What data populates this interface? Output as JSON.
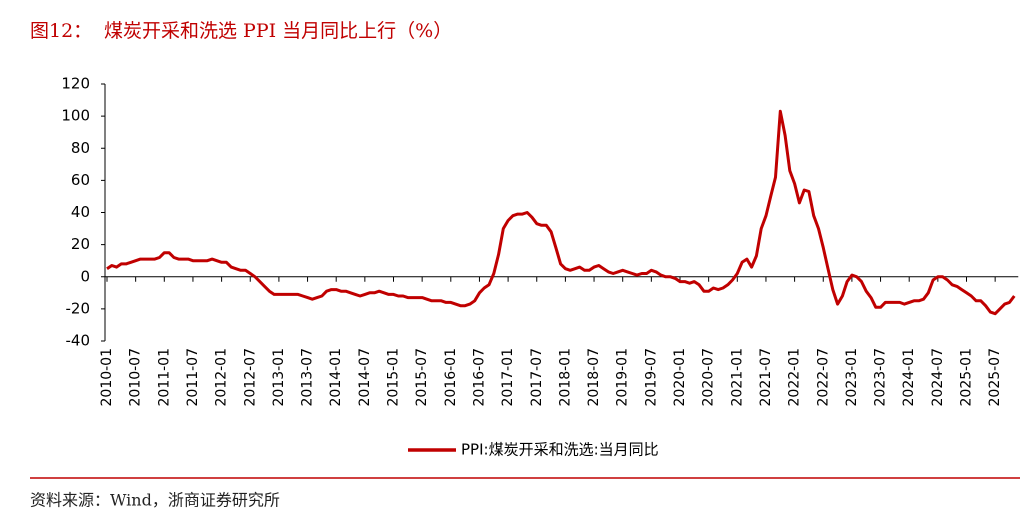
{
  "figure_label": "图12：",
  "chart_data": {
    "type": "line",
    "title": "煤炭开采和洗选 PPI 当月同比上行（%）",
    "categories": [
      "2010-01",
      null,
      null,
      null,
      null,
      null,
      "2010-07",
      null,
      null,
      null,
      null,
      null,
      "2011-01",
      null,
      null,
      null,
      null,
      null,
      "2011-07",
      null,
      null,
      null,
      null,
      null,
      "2012-01",
      null,
      null,
      null,
      null,
      null,
      "2012-07",
      null,
      null,
      null,
      null,
      null,
      "2013-01",
      null,
      null,
      null,
      null,
      null,
      "2013-07",
      null,
      null,
      null,
      null,
      null,
      "2014-01",
      null,
      null,
      null,
      null,
      null,
      "2014-07",
      null,
      null,
      null,
      null,
      null,
      "2015-01",
      null,
      null,
      null,
      null,
      null,
      "2015-07",
      null,
      null,
      null,
      null,
      null,
      "2016-01",
      null,
      null,
      null,
      null,
      null,
      "2016-07",
      null,
      null,
      null,
      null,
      null,
      "2017-01",
      null,
      null,
      null,
      null,
      null,
      "2017-07",
      null,
      null,
      null,
      null,
      null,
      "2018-01",
      null,
      null,
      null,
      null,
      null,
      "2018-07",
      null,
      null,
      null,
      null,
      null,
      "2019-01",
      null,
      null,
      null,
      null,
      null,
      "2019-07",
      null,
      null,
      null,
      null,
      null,
      "2020-01",
      null,
      null,
      null,
      null,
      null,
      "2020-07",
      null,
      null,
      null,
      null,
      null,
      "2021-01",
      null,
      null,
      null,
      null,
      null,
      "2021-07",
      null,
      null,
      null,
      null,
      null,
      "2022-01",
      null,
      null,
      null,
      null,
      null,
      "2022-07",
      null,
      null,
      null,
      null,
      null,
      "2023-01",
      null,
      null,
      null,
      null,
      null,
      "2023-07",
      null,
      null,
      null,
      null,
      null,
      "2024-01",
      null,
      null,
      null,
      null,
      null,
      "2024-07",
      null,
      null,
      null,
      null,
      null,
      "2025-01",
      null,
      null,
      null,
      null,
      null,
      "2025-07",
      null,
      null,
      null,
      null
    ],
    "series": [
      {
        "name": "PPI:煤炭开采和洗选:当月同比",
        "color": "#c00000",
        "values": [
          5,
          7,
          6,
          8,
          8,
          9,
          10,
          11,
          11,
          11,
          11,
          12,
          15,
          15,
          12,
          11,
          11,
          11,
          10,
          10,
          10,
          10,
          11,
          10,
          9,
          9,
          6,
          5,
          4,
          4,
          2,
          0,
          -3,
          -6,
          -9,
          -11,
          -11,
          -11,
          -11,
          -11,
          -11,
          -12,
          -13,
          -14,
          -13,
          -12,
          -9,
          -8,
          -8,
          -9,
          -9,
          -10,
          -11,
          -12,
          -11,
          -10,
          -10,
          -9,
          -10,
          -11,
          -11,
          -12,
          -12,
          -13,
          -13,
          -13,
          -13,
          -14,
          -15,
          -15,
          -15,
          -16,
          -16,
          -17,
          -18,
          -18,
          -17,
          -15,
          -10,
          -7,
          -5,
          2,
          14,
          30,
          35,
          38,
          39,
          39,
          40,
          37,
          33,
          32,
          32,
          28,
          18,
          8,
          5,
          4,
          5,
          6,
          4,
          4,
          6,
          7,
          5,
          3,
          2,
          3,
          4,
          3,
          2,
          1,
          2,
          2,
          4,
          3,
          1,
          0,
          0,
          -1,
          -3,
          -3,
          -4,
          -3,
          -5,
          -9,
          -9,
          -7,
          -8,
          -7,
          -5,
          -2,
          2,
          9,
          11,
          6,
          13,
          30,
          38,
          50,
          62,
          103,
          88,
          66,
          58,
          46,
          54,
          53,
          38,
          30,
          18,
          5,
          -8,
          -17,
          -12,
          -3,
          1,
          0,
          -3,
          -9,
          -13,
          -19,
          -19,
          -16,
          -16,
          -16,
          -16,
          -17,
          -16,
          -15,
          -15,
          -14,
          -10,
          -2,
          0,
          0,
          -2,
          -5,
          -6,
          -8,
          -10,
          -12,
          -15,
          -15,
          -18,
          -22,
          -23,
          -20,
          -17,
          -16,
          -12
        ]
      }
    ],
    "ylim": [
      -40,
      120
    ],
    "yticks": [
      -40,
      -20,
      0,
      20,
      40,
      60,
      80,
      100,
      120
    ]
  },
  "source": "资料来源：Wind，浙商证券研究所"
}
